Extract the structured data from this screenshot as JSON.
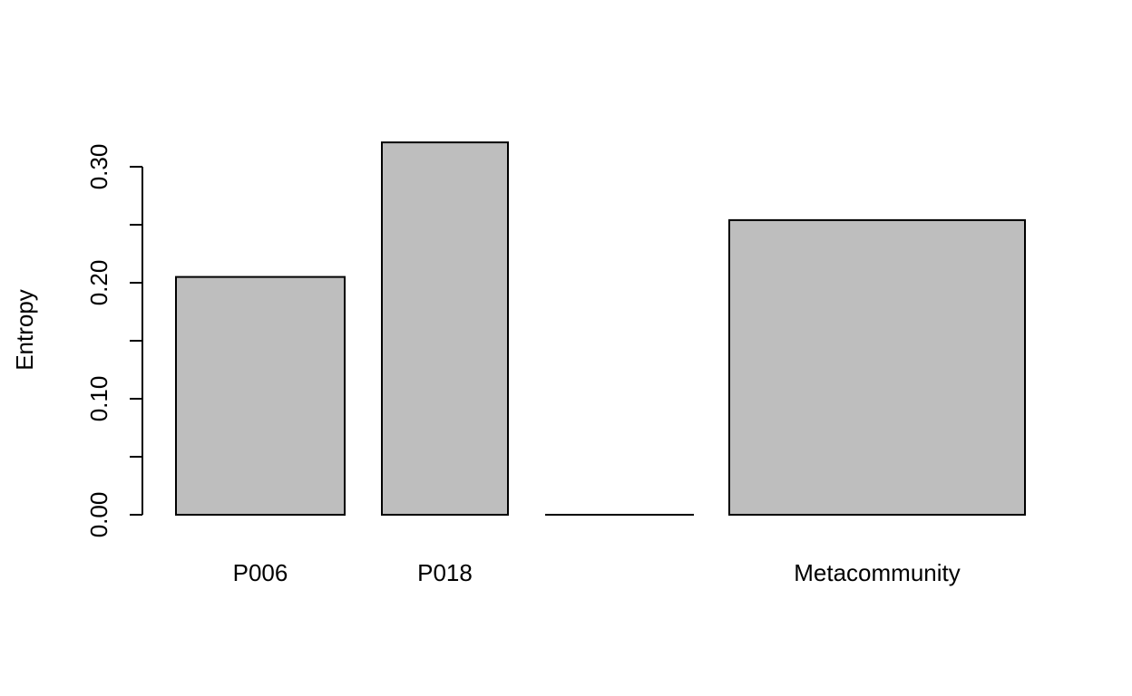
{
  "chart_data": {
    "type": "bar",
    "categories": [
      "P006",
      "P018",
      "",
      "Metacommunity"
    ],
    "values": [
      0.205,
      0.321,
      0.0,
      0.254
    ],
    "title": "",
    "xlabel": "",
    "ylabel": "Entropy",
    "ylim": [
      0,
      0.32
    ],
    "yticks": [
      0.0,
      0.05,
      0.1,
      0.15,
      0.2,
      0.25,
      0.3
    ],
    "ytick_labels": [
      "0.00",
      "",
      "0.10",
      "",
      "0.20",
      "",
      "0.30"
    ],
    "grid": false,
    "legend": "none",
    "bar_color": "#bebebe",
    "edge_color": "#000000"
  }
}
